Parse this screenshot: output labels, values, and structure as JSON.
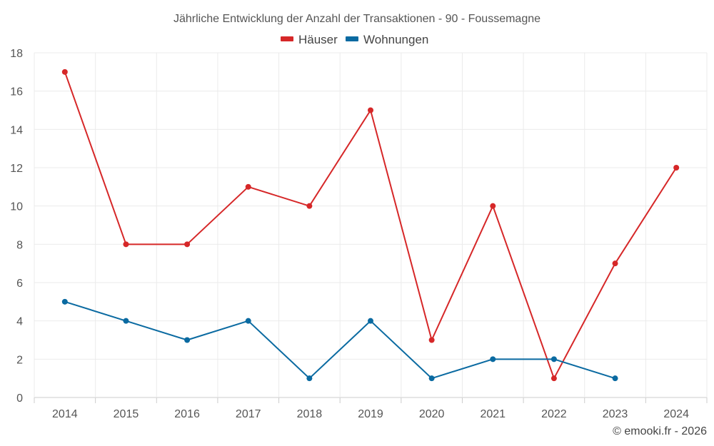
{
  "chart_data": {
    "type": "line",
    "title": "Jährliche Entwicklung der Anzahl der Transaktionen - 90 - Foussemagne",
    "xlabel": "",
    "ylabel": "",
    "categories": [
      "2014",
      "2015",
      "2016",
      "2017",
      "2018",
      "2019",
      "2020",
      "2021",
      "2022",
      "2023",
      "2024"
    ],
    "ylim": [
      0,
      18
    ],
    "yticks": [
      0,
      2,
      4,
      6,
      8,
      10,
      12,
      14,
      16,
      18
    ],
    "grid": true,
    "legend_position": "top-center",
    "series": [
      {
        "name": "Häuser",
        "color": "#d62728",
        "values": [
          17,
          8,
          8,
          11,
          10,
          15,
          3,
          10,
          1,
          7,
          12
        ]
      },
      {
        "name": "Wohnungen",
        "color": "#0a6aa1",
        "values": [
          5,
          4,
          3,
          4,
          1,
          4,
          1,
          2,
          2,
          1,
          null
        ]
      }
    ]
  },
  "credit": "© emooki.fr - 2026"
}
